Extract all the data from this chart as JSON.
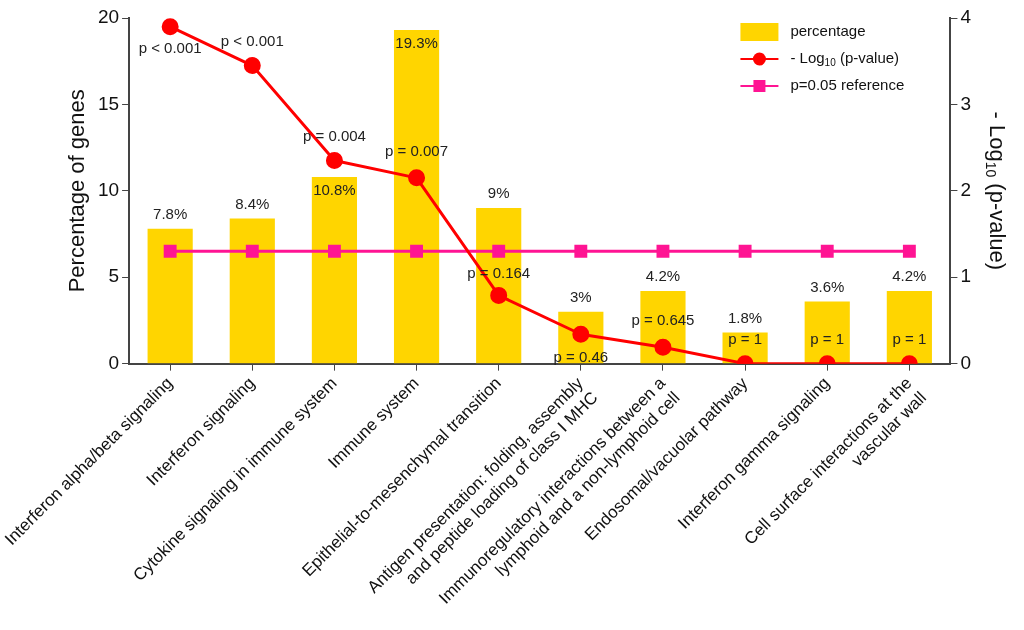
{
  "chart_data": {
    "type": "bar",
    "categories": [
      "Interferon alpha/beta signaling",
      "Interferon signaling",
      "Cytokine signaling in immune system",
      "Immune system",
      "Epithelial-to-mesenchymal transition",
      "Antigen presentation: folding, assembly and peptide loading of class I MHC",
      "Immunoregulatory interactions between a lymphoid and a non-lymphoid cell",
      "Endosomal/vacuolar pathway",
      "Interferon gamma signaling",
      "Cell surface interactions at the vascular wall"
    ],
    "ylabel": "Percentage of genes",
    "y2label": "- Log$_{10}$ (p-value)",
    "ylim": [
      0,
      20
    ],
    "yticks": [
      0,
      5,
      10,
      15,
      20
    ],
    "y2lim": [
      0,
      4
    ],
    "y2ticks": [
      0,
      1,
      2,
      3,
      4
    ],
    "grid": false,
    "legend": "top right",
    "series": [
      {
        "name": "percentage",
        "color": "#ffd500",
        "values": [
          7.8,
          8.4,
          10.8,
          19.3,
          9,
          3,
          4.2,
          1.8,
          3.6,
          4.2
        ],
        "value_labels": [
          "7.8%",
          "8.4%",
          "10.8%",
          "19.3%",
          "9%",
          "3%",
          "4.2%",
          "1.8%",
          "3.6%",
          "4.2%"
        ]
      },
      {
        "name": "- Log$_{10}$ (p-value)",
        "type": "line",
        "axis": "y2",
        "color": "#ff0000",
        "marker": "circle",
        "values": [
          3.9,
          3.45,
          2.35,
          2.15,
          0.79,
          0.34,
          0.19,
          0,
          0,
          0
        ]
      },
      {
        "name": "p=0.05 reference",
        "type": "line",
        "axis": "y2",
        "color": "#ff1493",
        "marker": "square",
        "values": [
          1.3,
          1.3,
          1.3,
          1.3,
          1.3,
          1.3,
          1.3,
          1.3,
          1.3,
          1.3
        ]
      }
    ],
    "annotations": [
      "p < 0.001",
      "p < 0.001",
      "p = 0.004",
      "p = 0.007",
      "p = 0.164",
      "p = 0.46",
      "p = 0.645",
      "p = 1",
      "p = 1",
      "p = 1"
    ]
  }
}
